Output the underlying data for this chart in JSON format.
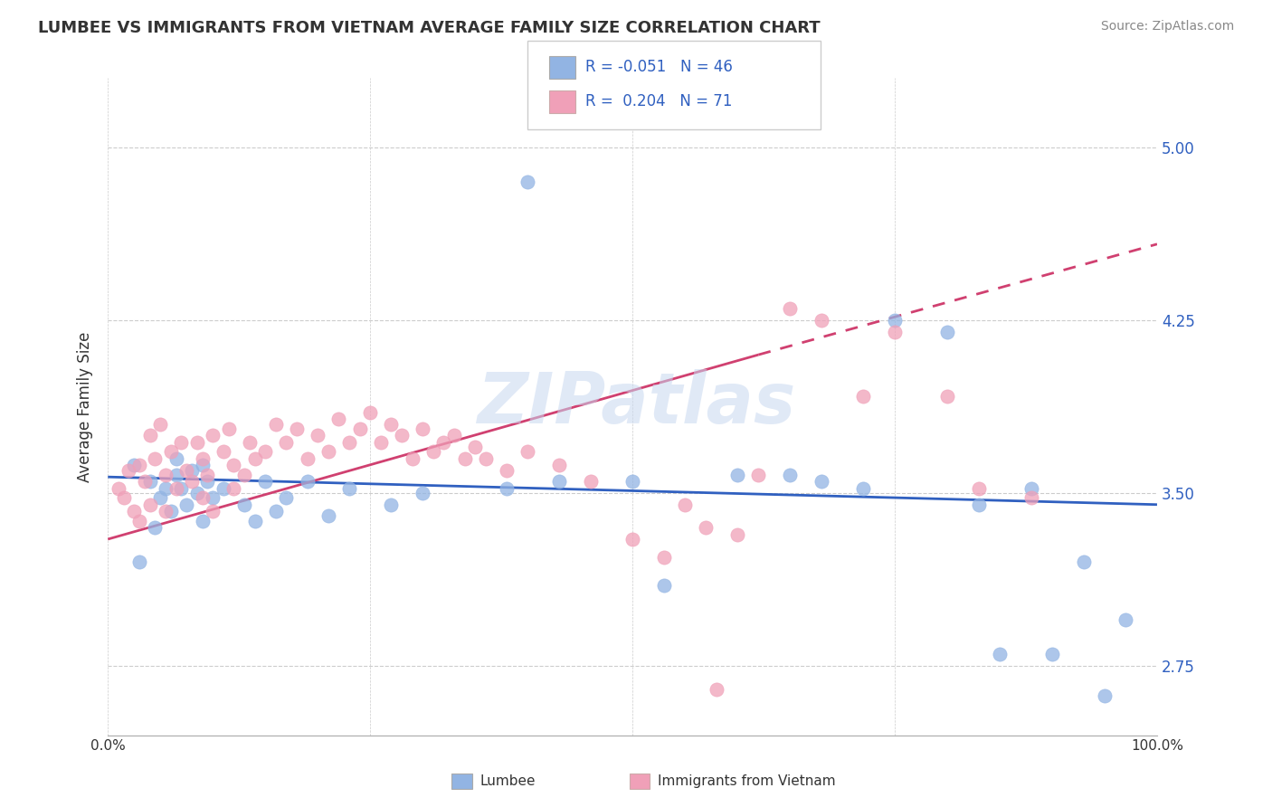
{
  "title": "LUMBEE VS IMMIGRANTS FROM VIETNAM AVERAGE FAMILY SIZE CORRELATION CHART",
  "source": "Source: ZipAtlas.com",
  "ylabel": "Average Family Size",
  "legend_label1": "Lumbee",
  "legend_label2": "Immigrants from Vietnam",
  "R1": "-0.051",
  "N1": "46",
  "R2": "0.204",
  "N2": "71",
  "color1": "#92b4e3",
  "color2": "#f0a0b8",
  "trendline1_color": "#3060c0",
  "trendline2_color": "#d04070",
  "background_color": "#ffffff",
  "grid_color": "#cccccc",
  "xlim": [
    0.0,
    1.0
  ],
  "ylim": [
    2.45,
    5.3
  ],
  "yticks": [
    2.75,
    3.5,
    4.25,
    5.0
  ],
  "xticks": [
    0.0,
    0.25,
    0.5,
    0.75,
    1.0
  ],
  "xticklabels": [
    "0.0%",
    "",
    "",
    "",
    "100.0%"
  ],
  "trendline1_x0": 0.0,
  "trendline1_y0": 3.57,
  "trendline1_x1": 1.0,
  "trendline1_y1": 3.45,
  "trendline2_solid_x0": 0.0,
  "trendline2_solid_y0": 3.3,
  "trendline2_solid_x1": 0.62,
  "trendline2_solid_y1": 4.1,
  "trendline2_dash_x0": 0.62,
  "trendline2_dash_y0": 4.1,
  "trendline2_dash_x1": 1.0,
  "trendline2_dash_y1": 4.58,
  "scatter1_x": [
    0.025,
    0.03,
    0.04,
    0.045,
    0.05,
    0.055,
    0.06,
    0.065,
    0.065,
    0.07,
    0.075,
    0.08,
    0.085,
    0.09,
    0.09,
    0.095,
    0.1,
    0.11,
    0.13,
    0.14,
    0.15,
    0.16,
    0.17,
    0.19,
    0.21,
    0.23,
    0.27,
    0.3,
    0.38,
    0.4,
    0.43,
    0.5,
    0.53,
    0.6,
    0.65,
    0.68,
    0.72,
    0.75,
    0.8,
    0.83,
    0.85,
    0.88,
    0.9,
    0.93,
    0.95,
    0.97
  ],
  "scatter1_y": [
    3.62,
    3.2,
    3.55,
    3.35,
    3.48,
    3.52,
    3.42,
    3.58,
    3.65,
    3.52,
    3.45,
    3.6,
    3.5,
    3.62,
    3.38,
    3.55,
    3.48,
    3.52,
    3.45,
    3.38,
    3.55,
    3.42,
    3.48,
    3.55,
    3.4,
    3.52,
    3.45,
    3.5,
    3.52,
    4.85,
    3.55,
    3.55,
    3.1,
    3.58,
    3.58,
    3.55,
    3.52,
    4.25,
    4.2,
    3.45,
    2.8,
    3.52,
    2.8,
    3.2,
    2.62,
    2.95
  ],
  "scatter2_x": [
    0.01,
    0.015,
    0.02,
    0.025,
    0.03,
    0.03,
    0.035,
    0.04,
    0.04,
    0.045,
    0.05,
    0.055,
    0.055,
    0.06,
    0.065,
    0.07,
    0.075,
    0.08,
    0.085,
    0.09,
    0.09,
    0.095,
    0.1,
    0.1,
    0.11,
    0.115,
    0.12,
    0.12,
    0.13,
    0.135,
    0.14,
    0.15,
    0.16,
    0.17,
    0.18,
    0.19,
    0.2,
    0.21,
    0.22,
    0.23,
    0.24,
    0.25,
    0.26,
    0.27,
    0.28,
    0.29,
    0.3,
    0.31,
    0.32,
    0.33,
    0.34,
    0.35,
    0.36,
    0.38,
    0.4,
    0.43,
    0.46,
    0.5,
    0.53,
    0.55,
    0.57,
    0.58,
    0.6,
    0.62,
    0.65,
    0.68,
    0.72,
    0.75,
    0.8,
    0.83,
    0.88
  ],
  "scatter2_y": [
    3.52,
    3.48,
    3.6,
    3.42,
    3.62,
    3.38,
    3.55,
    3.75,
    3.45,
    3.65,
    3.8,
    3.58,
    3.42,
    3.68,
    3.52,
    3.72,
    3.6,
    3.55,
    3.72,
    3.65,
    3.48,
    3.58,
    3.75,
    3.42,
    3.68,
    3.78,
    3.52,
    3.62,
    3.58,
    3.72,
    3.65,
    3.68,
    3.8,
    3.72,
    3.78,
    3.65,
    3.75,
    3.68,
    3.82,
    3.72,
    3.78,
    3.85,
    3.72,
    3.8,
    3.75,
    3.65,
    3.78,
    3.68,
    3.72,
    3.75,
    3.65,
    3.7,
    3.65,
    3.6,
    3.68,
    3.62,
    3.55,
    3.3,
    3.22,
    3.45,
    3.35,
    2.65,
    3.32,
    3.58,
    4.3,
    4.25,
    3.92,
    4.2,
    3.92,
    3.52,
    3.48
  ]
}
